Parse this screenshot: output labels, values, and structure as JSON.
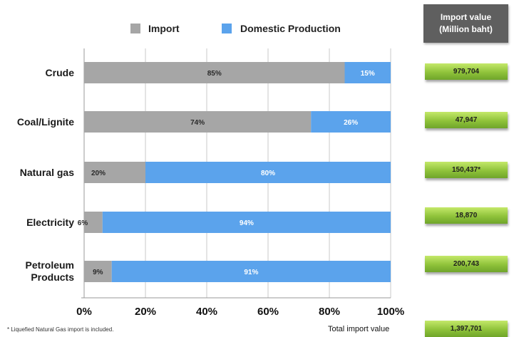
{
  "chart_data": {
    "type": "bar",
    "orientation": "horizontal",
    "stacked": true,
    "categories": [
      "Crude",
      "Coal/Lignite",
      "Natural gas",
      "Electricity",
      "Petroleum Products"
    ],
    "series": [
      {
        "name": "Import",
        "values": [
          85,
          74,
          20,
          6,
          9
        ],
        "labels": [
          "85%",
          "74%",
          "20%",
          "6%",
          "9%"
        ],
        "color": "#a6a6a6"
      },
      {
        "name": "Domestic Production",
        "values": [
          15,
          26,
          80,
          94,
          91
        ],
        "labels": [
          "15%",
          "26%",
          "80%",
          "94%",
          "91%"
        ],
        "color": "#5ba3ec"
      }
    ],
    "xlim": [
      0,
      100
    ],
    "xticks": [
      "0%",
      "20%",
      "40%",
      "60%",
      "80%",
      "100%"
    ],
    "grid": true,
    "legend_position": "top",
    "import_value": {
      "header_line1": "Import value",
      "header_line2": "(Million baht)",
      "values": [
        "979,704",
        "47,947",
        "150,437*",
        "18,870",
        "200,743"
      ],
      "total_label": "Total import value",
      "total_value": "1,397,701"
    },
    "footnote": "* Liquefied Natural Gas import is included."
  }
}
